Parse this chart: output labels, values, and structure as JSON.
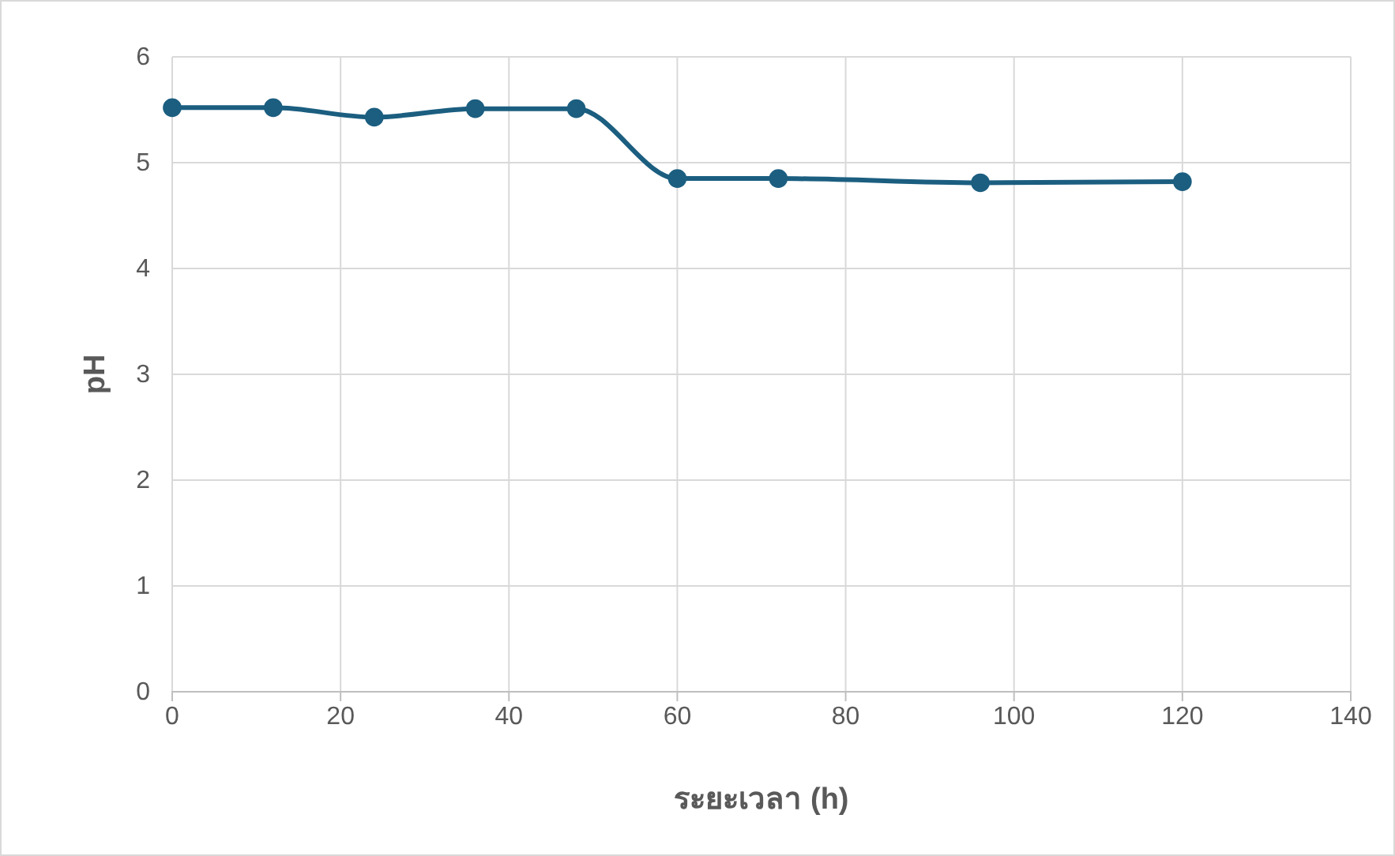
{
  "chart_data": {
    "type": "line",
    "xlabel": "ระยะเวลา (h)",
    "ylabel": "pH",
    "x": [
      0,
      12,
      24,
      36,
      48,
      60,
      72,
      96,
      120
    ],
    "series": [
      {
        "color": "#1b5e80",
        "values": [
          5.52,
          5.52,
          5.43,
          5.51,
          5.51,
          4.85,
          4.85,
          4.81,
          4.82
        ]
      }
    ],
    "xlim": [
      0,
      140
    ],
    "xticks": [
      0,
      20,
      40,
      60,
      80,
      100,
      120,
      140
    ],
    "ylim": [
      0,
      6
    ],
    "yticks": [
      0,
      1,
      2,
      3,
      4,
      5,
      6
    ],
    "grid": true,
    "marker": "circle",
    "line_style": "solid"
  }
}
